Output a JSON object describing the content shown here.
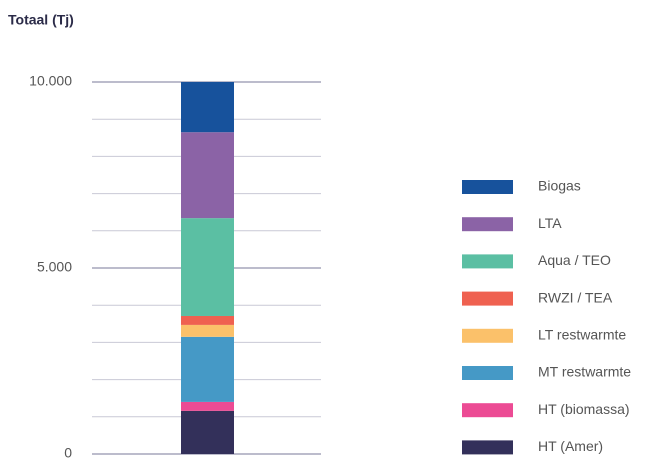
{
  "chart_data": {
    "type": "stacked_bar",
    "title": "Totaal (Tj)",
    "series": [
      {
        "name": "HT (Amer)",
        "color": "#33305a",
        "values": [
          1160
        ]
      },
      {
        "name": "HT (biomassa)",
        "color": "#ec4b94",
        "values": [
          240
        ]
      },
      {
        "name": "MT restwarmte",
        "color": "#4599c6",
        "values": [
          1750
        ]
      },
      {
        "name": "LT restwarmte",
        "color": "#fbc16a",
        "values": [
          320
        ]
      },
      {
        "name": "RWZI / TEA",
        "color": "#ef6150",
        "values": [
          240
        ]
      },
      {
        "name": "Aqua / TEO",
        "color": "#5bbfa3",
        "values": [
          2630
        ]
      },
      {
        "name": "LTA",
        "color": "#8b63a6",
        "values": [
          2310
        ]
      },
      {
        "name": "Biogas",
        "color": "#17529c",
        "values": [
          1350
        ]
      }
    ],
    "ylim": [
      0,
      10000
    ],
    "yticks": [
      0,
      {
        "value": 5000,
        "label": "5.000"
      },
      {
        "value": 10000,
        "label": "10.000"
      }
    ],
    "minor_yticks": [
      1000,
      2000,
      3000,
      4000,
      6000,
      7000,
      8000,
      9000
    ],
    "grid": true,
    "legend": "right"
  }
}
